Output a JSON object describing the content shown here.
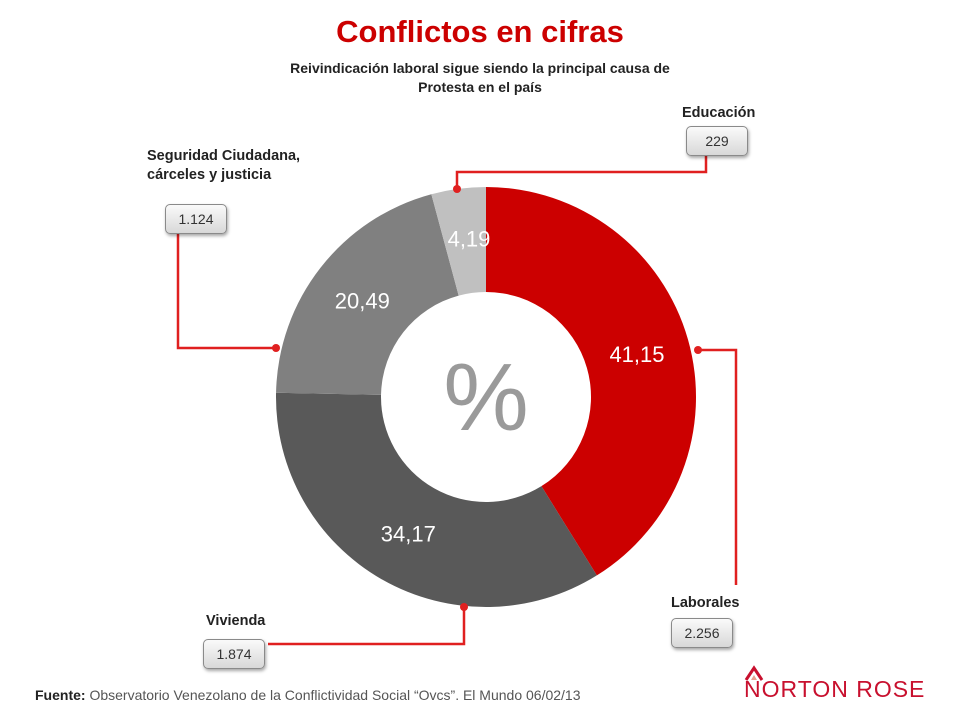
{
  "chart_data": {
    "type": "pie",
    "donut": true,
    "title": "Conflictos en cifras",
    "subtitle": "Reivindicación laboral sigue siendo la principal causa de Protesta en el país",
    "center_label": "%",
    "slices": [
      {
        "name": "Laborales",
        "value": 41.15,
        "display": "41,15",
        "count": "2.256",
        "color": "#cc0000"
      },
      {
        "name": "Vivienda",
        "value": 34.17,
        "display": "34,17",
        "count": "1.874",
        "color": "#595959"
      },
      {
        "name": "Seguridad Ciudadana, cárceles y justicia",
        "value": 20.49,
        "display": "20,49",
        "count": "1.124",
        "color": "#808080"
      },
      {
        "name": "Educación",
        "value": 4.19,
        "display": "4,19",
        "count": "229",
        "color": "#c0c0c0"
      }
    ]
  },
  "labels": {
    "laborales": "Laborales",
    "vivienda": "Vivienda",
    "seguridad_line1": "Seguridad Ciudadana,",
    "seguridad_line2": "cárceles y justicia",
    "educacion": "Educación"
  },
  "counts": {
    "laborales": "2.256",
    "vivienda": "1.874",
    "seguridad": "1.124",
    "educacion": "229"
  },
  "footer": {
    "source_label": "Fuente:",
    "source_text": "Observatorio Venezolano de la Conflictividad Social “Ovcs”. El Mundo 06/02/13"
  },
  "logo": {
    "text": "NORTON ROSE",
    "color": "#c8102e"
  },
  "colors": {
    "accent": "#cc0000",
    "connector": "#e02020"
  }
}
